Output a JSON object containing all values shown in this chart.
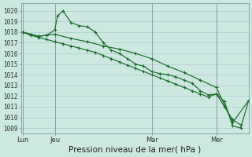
{
  "xlabel": "Pression niveau de la mer( hPa )",
  "background_color": "#cce8e0",
  "grid_color": "#aacccc",
  "line_color": "#1a6b2a",
  "ylim": [
    1008.5,
    1020.7
  ],
  "xlim": [
    -0.5,
    84
  ],
  "xtick_labels": [
    "Lun",
    "Jeu",
    "Mar",
    "Mer"
  ],
  "xtick_positions": [
    0,
    12,
    48,
    72
  ],
  "ytick_values": [
    1009,
    1010,
    1011,
    1012,
    1013,
    1014,
    1015,
    1016,
    1017,
    1018,
    1019,
    1020
  ],
  "line1_x": [
    0,
    3,
    6,
    9,
    12,
    13,
    15,
    18,
    21,
    24,
    27,
    30,
    33,
    36,
    39,
    42,
    45,
    48,
    51,
    54,
    57,
    60,
    63,
    66,
    69,
    72,
    75,
    78,
    81
  ],
  "line1_y": [
    1018.0,
    1017.8,
    1017.6,
    1017.7,
    1018.2,
    1019.5,
    1020.0,
    1018.9,
    1018.6,
    1018.5,
    1018.0,
    1017.0,
    1016.3,
    1016.0,
    1015.5,
    1015.0,
    1014.8,
    1014.3,
    1014.1,
    1014.0,
    1013.8,
    1013.5,
    1013.2,
    1012.5,
    1012.1,
    1012.2,
    1011.0,
    1009.8,
    1009.3
  ],
  "line2_x": [
    0,
    3,
    6,
    9,
    12,
    15,
    18,
    21,
    24,
    27,
    30,
    33,
    36,
    39,
    42,
    45,
    48,
    51,
    54,
    57,
    60,
    63,
    66,
    69,
    72,
    75,
    78,
    81,
    84
  ],
  "line2_y": [
    1018.0,
    1017.7,
    1017.5,
    1017.3,
    1017.1,
    1016.9,
    1016.7,
    1016.5,
    1016.3,
    1016.1,
    1015.8,
    1015.5,
    1015.2,
    1014.9,
    1014.6,
    1014.3,
    1014.0,
    1013.7,
    1013.4,
    1013.1,
    1012.8,
    1012.5,
    1012.2,
    1011.9,
    1012.2,
    1011.5,
    1009.2,
    1009.0,
    1011.6
  ],
  "line3_x": [
    0,
    6,
    12,
    18,
    24,
    30,
    36,
    42,
    48,
    54,
    60,
    66,
    72,
    78,
    84
  ],
  "line3_y": [
    1018.0,
    1017.6,
    1017.8,
    1017.4,
    1017.1,
    1016.7,
    1016.4,
    1016.0,
    1015.5,
    1014.8,
    1014.2,
    1013.5,
    1012.8,
    1009.5,
    1011.6
  ],
  "xlabel_fontsize": 7.5,
  "ytick_fontsize": 5.5,
  "xtick_fontsize": 6.0
}
